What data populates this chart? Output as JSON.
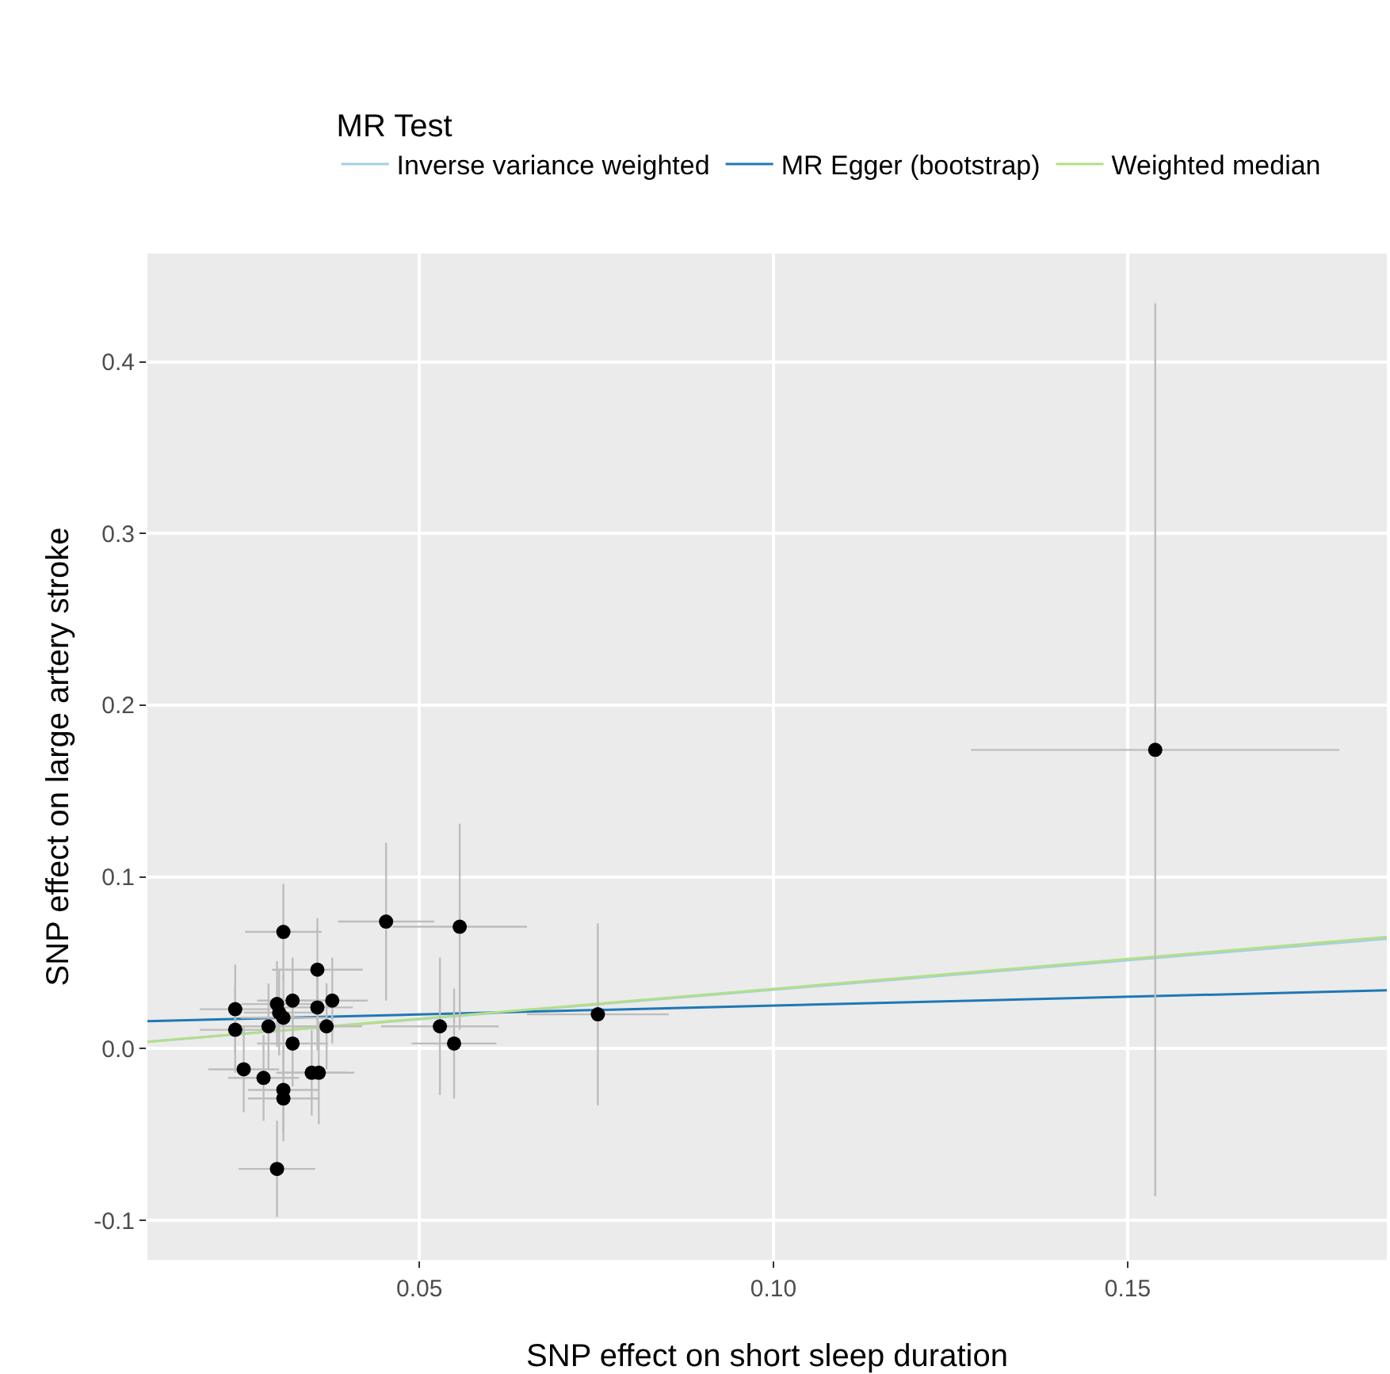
{
  "chart_data": {
    "type": "scatter",
    "xlabel": "SNP effect on short sleep duration",
    "ylabel": "SNP effect on large artery stroke",
    "legend_title": "MR Test",
    "xlim": [
      0.0116,
      0.1866
    ],
    "ylim": [
      -0.123,
      0.463
    ],
    "xticks": [
      0.05,
      {
        "value": 0.1,
        "label": "0.10"
      },
      0.15
    ],
    "yticks": [
      -0.1,
      {
        "value": 0,
        "label": "0.0"
      },
      0.1,
      0.2,
      0.3,
      0.4
    ],
    "grid": true,
    "legend": "top",
    "series": [
      {
        "marker": "circle",
        "color": "#000000",
        "x": [
          0.0308,
          0.0453,
          0.0557,
          0.0356,
          0.024,
          0.0299,
          0.0321,
          0.0377,
          0.0356,
          0.0302,
          0.0308,
          0.0287,
          0.024,
          0.0369,
          0.0529,
          0.0321,
          0.0549,
          0.0252,
          0.028,
          0.0348,
          0.0358,
          0.0308,
          0.0308,
          0.0299,
          0.0752,
          0.1539
        ],
        "values": [
          0.068,
          0.074,
          0.071,
          0.046,
          0.023,
          0.026,
          0.028,
          0.028,
          0.024,
          0.021,
          0.018,
          0.013,
          0.011,
          0.013,
          0.013,
          0.003,
          0.003,
          -0.012,
          -0.017,
          -0.014,
          -0.014,
          -0.024,
          -0.029,
          -0.07,
          0.02,
          0.174
        ],
        "errors": [
          0.028,
          0.046,
          0.06,
          0.03,
          0.026,
          0.025,
          0.025,
          0.025,
          0.025,
          0.025,
          0.025,
          0.025,
          0.025,
          0.025,
          0.04,
          0.025,
          0.032,
          0.025,
          0.025,
          0.025,
          0.03,
          0.025,
          0.025,
          0.028,
          0.053,
          0.26
        ],
        "xerrors": [
          0.0054,
          0.0068,
          0.0095,
          0.0064,
          0.005,
          0.005,
          0.005,
          0.005,
          0.005,
          0.005,
          0.006,
          0.005,
          0.005,
          0.005,
          0.0083,
          0.005,
          0.006,
          0.005,
          0.005,
          0.005,
          0.005,
          0.005,
          0.005,
          0.0054,
          0.01,
          0.026
        ]
      },
      {
        "type": "line",
        "name": "Inverse variance weighted",
        "color": "#a6cee3",
        "x": [
          0.0116,
          0.1866
        ],
        "values": [
          0.004,
          0.064
        ]
      },
      {
        "type": "line",
        "name": "MR Egger (bootstrap)",
        "color": "#1f78b4",
        "x": [
          0.0116,
          0.1866
        ],
        "values": [
          0.016,
          0.034
        ]
      },
      {
        "type": "line",
        "name": "Weighted median",
        "color": "#b2df8a",
        "x": [
          0.0116,
          0.1866
        ],
        "values": [
          0.004,
          0.065
        ]
      }
    ]
  }
}
